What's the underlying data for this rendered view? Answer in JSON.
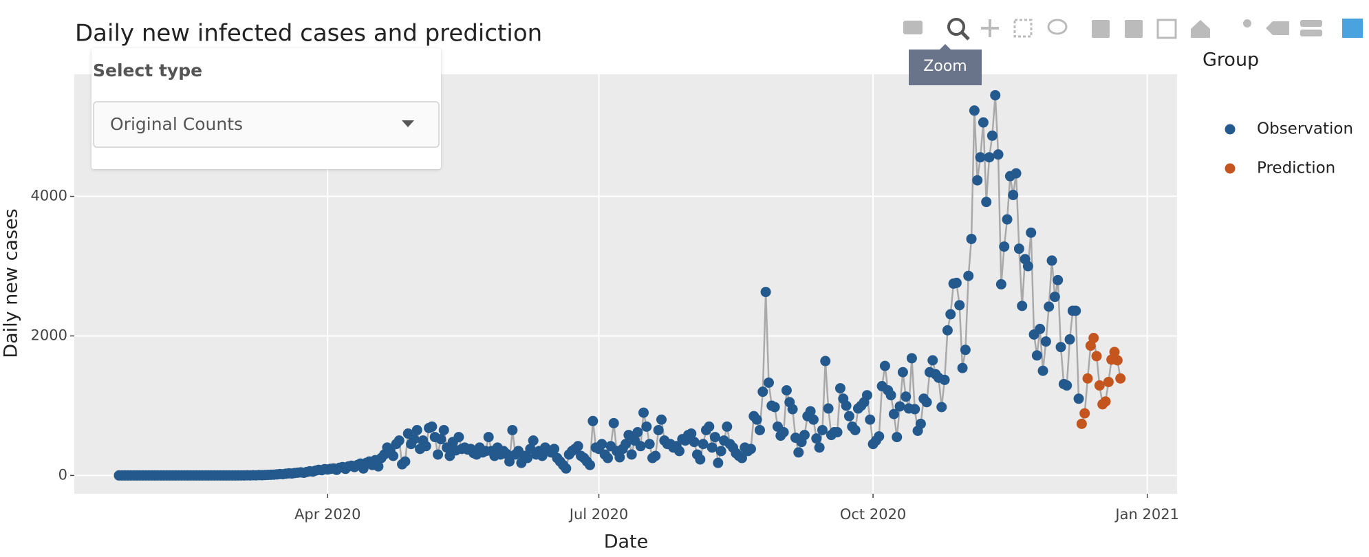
{
  "chart_data": {
    "type": "scatter",
    "title": "Daily new infected cases and prediction",
    "x_label": "Date",
    "y_label": "Daily new cases",
    "legend_title": "Group",
    "legend_position": "right",
    "grid": true,
    "line_color": "#a9a9a9",
    "xlim": [
      "2020-01-07",
      "2021-01-11"
    ],
    "xticks": [
      {
        "value": "2020-04-01",
        "label": "Apr 2020"
      },
      {
        "value": "2020-07-01",
        "label": "Jul 2020"
      },
      {
        "value": "2020-10-01",
        "label": "Oct 2020"
      },
      {
        "value": "2021-01-01",
        "label": "Jan 2021"
      }
    ],
    "ylim": [
      -262,
      5750
    ],
    "yticks": [
      0,
      2000,
      4000
    ],
    "series": [
      {
        "name": "Observation",
        "color": "#23598c",
        "x": [
          "2020-01-22",
          "2020-01-23",
          "2020-01-24",
          "2020-01-25",
          "2020-01-26",
          "2020-01-27",
          "2020-01-28",
          "2020-01-29",
          "2020-01-30",
          "2020-01-31",
          "2020-02-01",
          "2020-02-02",
          "2020-02-03",
          "2020-02-04",
          "2020-02-05",
          "2020-02-06",
          "2020-02-07",
          "2020-02-08",
          "2020-02-09",
          "2020-02-10",
          "2020-02-11",
          "2020-02-12",
          "2020-02-13",
          "2020-02-14",
          "2020-02-15",
          "2020-02-16",
          "2020-02-17",
          "2020-02-18",
          "2020-02-19",
          "2020-02-20",
          "2020-02-21",
          "2020-02-22",
          "2020-02-23",
          "2020-02-24",
          "2020-02-25",
          "2020-02-26",
          "2020-02-27",
          "2020-02-28",
          "2020-02-29",
          "2020-03-01",
          "2020-03-02",
          "2020-03-03",
          "2020-03-04",
          "2020-03-05",
          "2020-03-06",
          "2020-03-07",
          "2020-03-08",
          "2020-03-09",
          "2020-03-10",
          "2020-03-11",
          "2020-03-12",
          "2020-03-13",
          "2020-03-14",
          "2020-03-15",
          "2020-03-16",
          "2020-03-17",
          "2020-03-18",
          "2020-03-19",
          "2020-03-20",
          "2020-03-21",
          "2020-03-22",
          "2020-03-23",
          "2020-03-24",
          "2020-03-25",
          "2020-03-26",
          "2020-03-27",
          "2020-03-28",
          "2020-03-29",
          "2020-03-30",
          "2020-03-31",
          "2020-04-01",
          "2020-04-02",
          "2020-04-03",
          "2020-04-04",
          "2020-04-05",
          "2020-04-06",
          "2020-04-07",
          "2020-04-08",
          "2020-04-09",
          "2020-04-10",
          "2020-04-11",
          "2020-04-12",
          "2020-04-13",
          "2020-04-14",
          "2020-04-15",
          "2020-04-16",
          "2020-04-17",
          "2020-04-18",
          "2020-04-19",
          "2020-04-20",
          "2020-04-21",
          "2020-04-22",
          "2020-04-23",
          "2020-04-24",
          "2020-04-25",
          "2020-04-26",
          "2020-04-27",
          "2020-04-28",
          "2020-04-29",
          "2020-04-30",
          "2020-05-01",
          "2020-05-02",
          "2020-05-03",
          "2020-05-04",
          "2020-05-05",
          "2020-05-06",
          "2020-05-07",
          "2020-05-08",
          "2020-05-09",
          "2020-05-10",
          "2020-05-11",
          "2020-05-12",
          "2020-05-13",
          "2020-05-14",
          "2020-05-15",
          "2020-05-16",
          "2020-05-17",
          "2020-05-18",
          "2020-05-19",
          "2020-05-20",
          "2020-05-21",
          "2020-05-22",
          "2020-05-23",
          "2020-05-24",
          "2020-05-25",
          "2020-05-26",
          "2020-05-27",
          "2020-05-28",
          "2020-05-29",
          "2020-05-30",
          "2020-05-31",
          "2020-06-01",
          "2020-06-02",
          "2020-06-03",
          "2020-06-04",
          "2020-06-05",
          "2020-06-06",
          "2020-06-07",
          "2020-06-08",
          "2020-06-09",
          "2020-06-10",
          "2020-06-11",
          "2020-06-12",
          "2020-06-13",
          "2020-06-14",
          "2020-06-15",
          "2020-06-16",
          "2020-06-17",
          "2020-06-18",
          "2020-06-19",
          "2020-06-20",
          "2020-06-21",
          "2020-06-22",
          "2020-06-23",
          "2020-06-24",
          "2020-06-25",
          "2020-06-26",
          "2020-06-27",
          "2020-06-28",
          "2020-06-29",
          "2020-06-30",
          "2020-07-01",
          "2020-07-02",
          "2020-07-03",
          "2020-07-04",
          "2020-07-05",
          "2020-07-06",
          "2020-07-07",
          "2020-07-08",
          "2020-07-09",
          "2020-07-10",
          "2020-07-11",
          "2020-07-12",
          "2020-07-13",
          "2020-07-14",
          "2020-07-15",
          "2020-07-16",
          "2020-07-17",
          "2020-07-18",
          "2020-07-19",
          "2020-07-20",
          "2020-07-21",
          "2020-07-22",
          "2020-07-23",
          "2020-07-24",
          "2020-07-25",
          "2020-07-26",
          "2020-07-27",
          "2020-07-28",
          "2020-07-29",
          "2020-07-30",
          "2020-07-31",
          "2020-08-01",
          "2020-08-02",
          "2020-08-03",
          "2020-08-04",
          "2020-08-05",
          "2020-08-06",
          "2020-08-07",
          "2020-08-08",
          "2020-08-09",
          "2020-08-10",
          "2020-08-11",
          "2020-08-12",
          "2020-08-13",
          "2020-08-14",
          "2020-08-15",
          "2020-08-16",
          "2020-08-17",
          "2020-08-18",
          "2020-08-19",
          "2020-08-20",
          "2020-08-21",
          "2020-08-22",
          "2020-08-23",
          "2020-08-24",
          "2020-08-25",
          "2020-08-26",
          "2020-08-27",
          "2020-08-28",
          "2020-08-29",
          "2020-08-30",
          "2020-08-31",
          "2020-09-01",
          "2020-09-02",
          "2020-09-03",
          "2020-09-04",
          "2020-09-05",
          "2020-09-06",
          "2020-09-07",
          "2020-09-08",
          "2020-09-09",
          "2020-09-10",
          "2020-09-11",
          "2020-09-12",
          "2020-09-13",
          "2020-09-14",
          "2020-09-15",
          "2020-09-16",
          "2020-09-17",
          "2020-09-18",
          "2020-09-19",
          "2020-09-20",
          "2020-09-21",
          "2020-09-22",
          "2020-09-23",
          "2020-09-24",
          "2020-09-25",
          "2020-09-26",
          "2020-09-27",
          "2020-09-28",
          "2020-09-29",
          "2020-09-30",
          "2020-10-01",
          "2020-10-02",
          "2020-10-03",
          "2020-10-04",
          "2020-10-05",
          "2020-10-06",
          "2020-10-07",
          "2020-10-08",
          "2020-10-09",
          "2020-10-10",
          "2020-10-11",
          "2020-10-12",
          "2020-10-13",
          "2020-10-14",
          "2020-10-15",
          "2020-10-16",
          "2020-10-17",
          "2020-10-18",
          "2020-10-19",
          "2020-10-20",
          "2020-10-21",
          "2020-10-22",
          "2020-10-23",
          "2020-10-24",
          "2020-10-25",
          "2020-10-26",
          "2020-10-27",
          "2020-10-28",
          "2020-10-29",
          "2020-10-30",
          "2020-10-31",
          "2020-11-01",
          "2020-11-02",
          "2020-11-03",
          "2020-11-04",
          "2020-11-05",
          "2020-11-06",
          "2020-11-07",
          "2020-11-08",
          "2020-11-09",
          "2020-11-10",
          "2020-11-11",
          "2020-11-12",
          "2020-11-13",
          "2020-11-14",
          "2020-11-15",
          "2020-11-16",
          "2020-11-17",
          "2020-11-18",
          "2020-11-19",
          "2020-11-20",
          "2020-11-21",
          "2020-11-22",
          "2020-11-23",
          "2020-11-24",
          "2020-11-25",
          "2020-11-26",
          "2020-11-27",
          "2020-11-28",
          "2020-11-29",
          "2020-11-30",
          "2020-12-01",
          "2020-12-02",
          "2020-12-03",
          "2020-12-04",
          "2020-12-05",
          "2020-12-06",
          "2020-12-07",
          "2020-12-08",
          "2020-12-09"
        ],
        "values": [
          0,
          0,
          0,
          0,
          0,
          0,
          0,
          0,
          0,
          0,
          0,
          0,
          0,
          0,
          0,
          0,
          0,
          0,
          0,
          0,
          0,
          0,
          0,
          0,
          0,
          0,
          0,
          0,
          0,
          0,
          0,
          0,
          0,
          0,
          0,
          0,
          0,
          0,
          0,
          0,
          0,
          1,
          0,
          2,
          1,
          3,
          2,
          5,
          4,
          6,
          8,
          10,
          12,
          15,
          20,
          18,
          25,
          30,
          28,
          35,
          40,
          45,
          38,
          50,
          60,
          55,
          70,
          80,
          75,
          90,
          85,
          95,
          100,
          80,
          110,
          120,
          95,
          130,
          140,
          120,
          150,
          170,
          100,
          180,
          200,
          150,
          220,
          130,
          250,
          300,
          400,
          350,
          280,
          450,
          500,
          160,
          200,
          600,
          450,
          520,
          650,
          380,
          500,
          420,
          680,
          700,
          550,
          300,
          520,
          650,
          400,
          280,
          480,
          360,
          550,
          380,
          400,
          370,
          380,
          320,
          300,
          400,
          330,
          350,
          550,
          350,
          280,
          400,
          300,
          350,
          310,
          200,
          650,
          300,
          350,
          180,
          280,
          250,
          380,
          500,
          300,
          350,
          280,
          400,
          350,
          330,
          380,
          250,
          200,
          150,
          100,
          300,
          350,
          380,
          420,
          280,
          250,
          200,
          150,
          780,
          400,
          380,
          450,
          300,
          250,
          420,
          750,
          350,
          260,
          380,
          450,
          580,
          300,
          500,
          620,
          420,
          900,
          700,
          450,
          250,
          280,
          650,
          800,
          500,
          450,
          450,
          400,
          420,
          350,
          520,
          500,
          580,
          600,
          480,
          300,
          230,
          450,
          650,
          700,
          400,
          550,
          180,
          350,
          500,
          700,
          450,
          400,
          320,
          280,
          250,
          400,
          350,
          380,
          850,
          800,
          650,
          1200,
          2630,
          1330,
          1000,
          980,
          700,
          570,
          620,
          1220,
          1050,
          950,
          540,
          330,
          480,
          580,
          850,
          920,
          800,
          530,
          400,
          650,
          1640,
          960,
          580,
          620,
          620,
          1250,
          1100,
          1000,
          850,
          700,
          650,
          960,
          1000,
          1050,
          1150,
          800,
          450,
          500,
          560,
          1280,
          1570,
          1220,
          1150,
          880,
          550,
          990,
          1480,
          1130,
          960,
          1680,
          950,
          640,
          740,
          1100,
          1050,
          1480,
          1650,
          1450,
          1400,
          980,
          1370,
          2080,
          2310,
          2750,
          2760,
          2440,
          1540,
          1800,
          2860,
          3390,
          5230,
          4230,
          4560,
          5060,
          3920,
          4560,
          4870,
          5450,
          4600,
          2740,
          3280,
          3670,
          4290,
          4020,
          4330,
          3250,
          2430,
          3100,
          3000,
          3480,
          2020,
          1720,
          2100,
          1500,
          1920,
          2420,
          3080,
          2560,
          2800,
          1840,
          1310,
          1290,
          1950,
          2360,
          2360,
          1100
        ]
      },
      {
        "name": "Prediction",
        "color": "#c4551f",
        "x": [
          "2020-12-10",
          "2020-12-11",
          "2020-12-12",
          "2020-12-13",
          "2020-12-14",
          "2020-12-15",
          "2020-12-16",
          "2020-12-17",
          "2020-12-18",
          "2020-12-19",
          "2020-12-20",
          "2020-12-21",
          "2020-12-22",
          "2020-12-23"
        ],
        "values": [
          740,
          890,
          1390,
          1860,
          1970,
          1710,
          1290,
          1020,
          1060,
          1340,
          1660,
          1770,
          1650,
          1390
        ]
      }
    ]
  },
  "ui": {
    "dropdown_label": "Select type",
    "dropdown_value": "Original Counts",
    "tooltip": "Zoom"
  }
}
